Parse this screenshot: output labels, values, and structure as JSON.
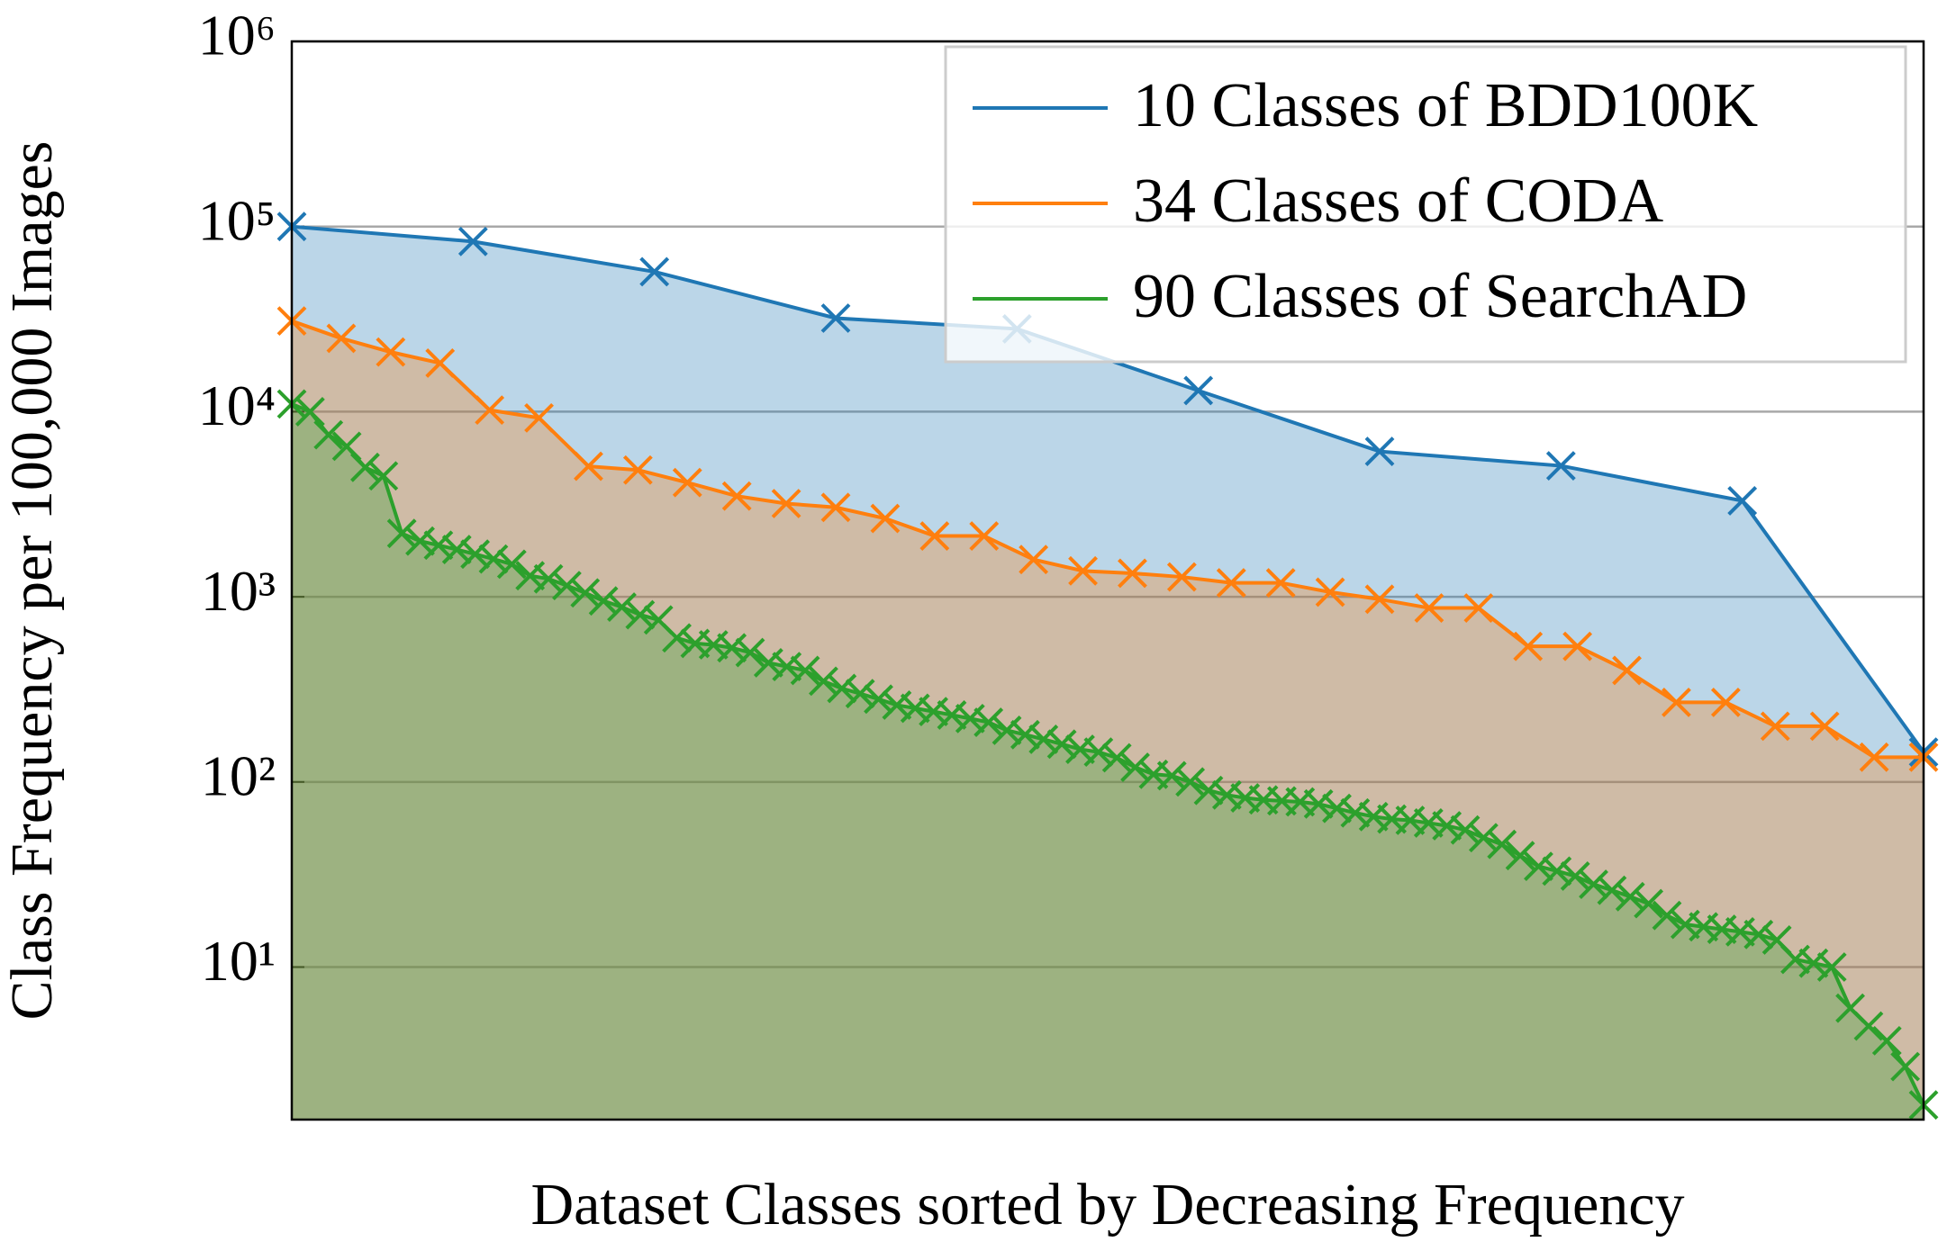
{
  "chart_data": {
    "type": "line",
    "y_label": "Class Frequency per 100,000 Images",
    "x_label": "Dataset Classes sorted by Decreasing Frequency",
    "y_log": true,
    "ylim": [
      1.5,
      1000000
    ],
    "grid": true,
    "fill": true,
    "legend": "upper right",
    "yticks": [
      {
        "value": 10,
        "label": "10¹"
      },
      {
        "value": 100,
        "label": "10²"
      },
      {
        "value": 1000,
        "label": "10³"
      },
      {
        "value": 10000,
        "label": "10⁴"
      },
      {
        "value": 100000,
        "label": "10⁵"
      },
      {
        "value": 1000000,
        "label": "10⁶"
      }
    ],
    "series": [
      {
        "name": "10 Classes of BDD100K",
        "color": "#1f77b4",
        "values": [
          100000,
          83000,
          57000,
          32000,
          28000,
          13000,
          6100,
          5100,
          3300,
          145
        ]
      },
      {
        "name": "34 Classes of CODA",
        "color": "#ff7f0e",
        "values": [
          30900,
          24900,
          21000,
          18300,
          10200,
          9250,
          5070,
          4840,
          4140,
          3500,
          3190,
          3040,
          2650,
          2130,
          2130,
          1590,
          1380,
          1340,
          1280,
          1190,
          1190,
          1060,
          970,
          870,
          870,
          540,
          540,
          400,
          269,
          269,
          200,
          200,
          136,
          136
        ]
      },
      {
        "name": "90 Classes of SearchAD",
        "color": "#2ca02c",
        "values": [
          11000,
          10000,
          7500,
          6500,
          5000,
          4500,
          2200,
          2000,
          1900,
          1800,
          1700,
          1600,
          1500,
          1300,
          1250,
          1150,
          1050,
          950,
          880,
          800,
          750,
          600,
          560,
          550,
          530,
          500,
          440,
          420,
          400,
          350,
          320,
          300,
          280,
          260,
          250,
          240,
          230,
          220,
          210,
          190,
          180,
          170,
          160,
          150,
          145,
          135,
          120,
          110,
          108,
          100,
          90,
          85,
          82,
          80,
          79,
          78,
          76,
          72,
          68,
          65,
          63,
          62,
          60,
          58,
          55,
          50,
          46,
          40,
          35,
          33,
          31,
          28,
          26,
          24,
          22,
          19,
          17,
          16.5,
          16,
          15.5,
          15,
          14,
          11,
          10.5,
          10,
          6,
          4.8,
          4.0,
          2.9,
          1.8
        ]
      }
    ]
  }
}
